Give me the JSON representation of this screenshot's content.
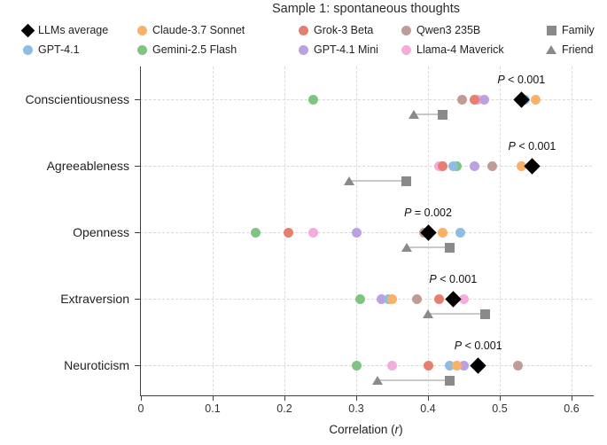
{
  "chart_data": {
    "type": "scatter",
    "title": "Sample 1: spontaneous thoughts",
    "xlabel": "Correlation (r)",
    "xlabel_parts": {
      "prefix": "Correlation (",
      "italic": "r",
      "suffix": ")"
    },
    "xlim": [
      0,
      0.65
    ],
    "x_tick_values": [
      0,
      0.1,
      0.2,
      0.3,
      0.4,
      0.5,
      0.6
    ],
    "x_tick_labels": [
      "0",
      "0.1",
      "0.2",
      "0.3",
      "0.4",
      "0.5",
      "0.6"
    ],
    "grid": "dashed vertical gridlines + dashed horizontal row guides",
    "legend_position": "top",
    "categories": [
      "Conscientiousness",
      "Agreeableness",
      "Openness",
      "Extraversion",
      "Neuroticism"
    ],
    "series": [
      {
        "key": "llms_average",
        "label": "LLMs average",
        "marker": "diamond",
        "color": "#000000"
      },
      {
        "key": "gpt41",
        "label": "GPT-4.1",
        "marker": "circle",
        "color": "#8FBCDF"
      },
      {
        "key": "claude",
        "label": "Claude-3.7 Sonnet",
        "marker": "circle",
        "color": "#F9B168"
      },
      {
        "key": "gemini",
        "label": "Gemini-2.5 Flash",
        "marker": "circle",
        "color": "#7EC67F"
      },
      {
        "key": "grok",
        "label": "Grok-3 Beta",
        "marker": "circle",
        "color": "#E87E70"
      },
      {
        "key": "gpt41_mini",
        "label": "GPT-4.1 Mini",
        "marker": "circle",
        "color": "#BBA0E2"
      },
      {
        "key": "qwen",
        "label": "Qwen3 235B",
        "marker": "circle",
        "color": "#C19C96"
      },
      {
        "key": "llama",
        "label": "Llama-4 Maverick",
        "marker": "circle",
        "color": "#F4ACDC"
      },
      {
        "key": "family",
        "label": "Family",
        "marker": "square",
        "color": "#8A8A8A"
      },
      {
        "key": "friend",
        "label": "Friend",
        "marker": "triangle",
        "color": "#8A8A8A"
      }
    ],
    "legend_layout": [
      [
        "llms_average",
        "claude",
        "grok",
        "qwen",
        "family"
      ],
      [
        "gpt41",
        "gemini",
        "gpt41_mini",
        "llama",
        "friend"
      ]
    ],
    "connector_color": "#C9C9C9",
    "rows": [
      {
        "trait": "Conscientiousness",
        "p_label": "P < 0.001",
        "values": {
          "llms_average": 0.53,
          "gpt41": 0.535,
          "claude": 0.55,
          "gemini": 0.24,
          "grok": 0.465,
          "gpt41_mini": 0.478,
          "qwen": 0.448,
          "llama": 0.47,
          "family": 0.42,
          "friend": 0.38
        }
      },
      {
        "trait": "Agreeableness",
        "p_label": "P < 0.001",
        "values": {
          "llms_average": 0.545,
          "gpt41": 0.435,
          "claude": 0.53,
          "gemini": 0.44,
          "grok": 0.42,
          "gpt41_mini": 0.465,
          "qwen": 0.49,
          "llama": 0.415,
          "family": 0.37,
          "friend": 0.29
        }
      },
      {
        "trait": "Openness",
        "p_label": "P = 0.002",
        "values": {
          "llms_average": 0.4,
          "gpt41": 0.445,
          "claude": 0.42,
          "gemini": 0.16,
          "grok": 0.205,
          "gpt41_mini": 0.3,
          "qwen": 0.395,
          "llama": 0.24,
          "family": 0.43,
          "friend": 0.37
        }
      },
      {
        "trait": "Extraversion",
        "p_label": "P < 0.001",
        "values": {
          "llms_average": 0.435,
          "gpt41": 0.345,
          "claude": 0.35,
          "gemini": 0.305,
          "grok": 0.415,
          "gpt41_mini": 0.335,
          "qwen": 0.385,
          "llama": 0.45,
          "family": 0.48,
          "friend": 0.4
        }
      },
      {
        "trait": "Neuroticism",
        "p_label": "P < 0.001",
        "values": {
          "llms_average": 0.47,
          "gpt41": 0.43,
          "claude": 0.44,
          "gemini": 0.3,
          "grok": 0.4,
          "gpt41_mini": 0.45,
          "qwen": 0.525,
          "llama": 0.35,
          "family": 0.43,
          "friend": 0.33
        }
      }
    ]
  }
}
